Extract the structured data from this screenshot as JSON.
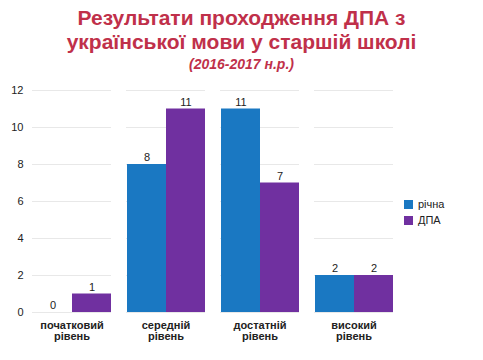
{
  "chart_data": {
    "type": "bar",
    "title": "Результати проходження ДПА з української мови у старшій школі",
    "subtitle": "(2016-2017 н.р.)",
    "categories": [
      "початковий рівень",
      "середній рівень",
      "достатній рівень",
      "високий рівень"
    ],
    "series": [
      {
        "name": "річна",
        "color": "#1a78c2",
        "values": [
          0,
          8,
          11,
          2
        ]
      },
      {
        "name": "ДПА",
        "color": "#7030a0",
        "values": [
          1,
          11,
          7,
          2
        ]
      }
    ],
    "ylim": [
      0,
      12
    ],
    "yticks": [
      0,
      2,
      4,
      6,
      8,
      10,
      12
    ],
    "grid": true,
    "legend": "right",
    "data_labels": true
  }
}
